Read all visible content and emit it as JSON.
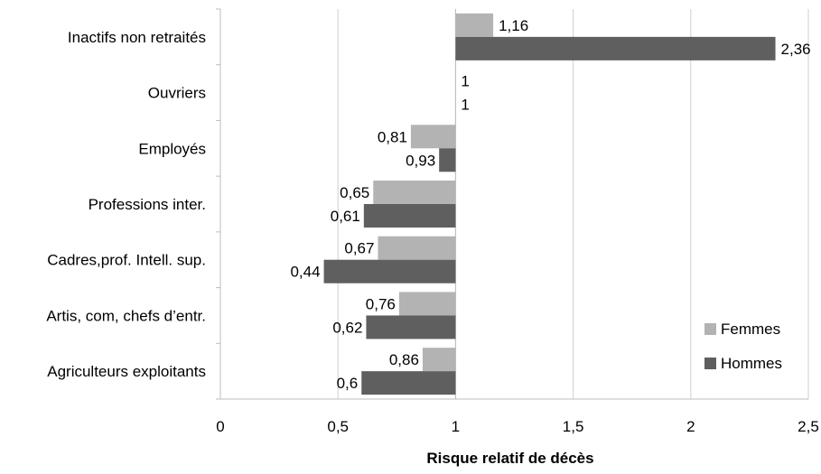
{
  "chart_data": {
    "type": "bar",
    "orientation": "horizontal",
    "baseline": 1,
    "categories": [
      "Inactifs non retraités",
      "Ouvriers",
      "Employés",
      "Professions inter.",
      "Cadres,prof. Intell. sup.",
      "Artis, com, chefs d’entr.",
      "Agriculteurs exploitants"
    ],
    "series": [
      {
        "name": "Femmes",
        "color": "#b3b3b3",
        "values": [
          1.16,
          1,
          0.81,
          0.65,
          0.67,
          0.76,
          0.86
        ],
        "labels": [
          "1,16",
          "1",
          "0,81",
          "0,65",
          "0,67",
          "0,76",
          "0,86"
        ]
      },
      {
        "name": "Hommes",
        "color": "#5f5f5f",
        "values": [
          2.36,
          1,
          0.93,
          0.61,
          0.44,
          0.62,
          0.6
        ],
        "labels": [
          "2,36",
          "1",
          "0,93",
          "0,61",
          "0,44",
          "0,62",
          "0,6"
        ]
      }
    ],
    "xlabel": "Risque relatif de décès",
    "xlim": [
      0,
      2.5
    ],
    "xticks": [
      0,
      0.5,
      1,
      1.5,
      2,
      2.5
    ],
    "xtick_labels": [
      "0",
      "0,5",
      "1",
      "1,5",
      "2",
      "2,5"
    ],
    "grid": true,
    "legend_position": "bottom-right"
  }
}
